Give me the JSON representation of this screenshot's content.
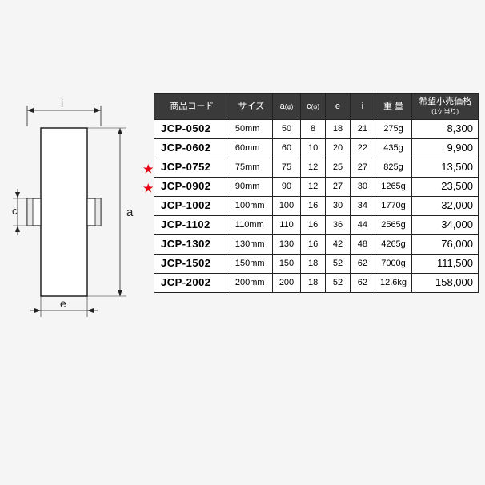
{
  "diagram": {
    "labels": {
      "i": "i",
      "a": "a",
      "c": "c",
      "e": "e"
    }
  },
  "table": {
    "headers": {
      "code": "商品コード",
      "size": "サイズ",
      "a": "a",
      "a_sub": "(φ)",
      "c": "c",
      "c_sub": "(φ)",
      "e": "e",
      "i": "i",
      "weight": "重 量",
      "price": "希望小売価格",
      "price_sub": "(1ケ当り)"
    },
    "rows": [
      {
        "star": false,
        "code": "JCP-0502",
        "size": "50mm",
        "a": "50",
        "c": "8",
        "e": "18",
        "i": "21",
        "weight": "275g",
        "price": "8,300"
      },
      {
        "star": false,
        "code": "JCP-0602",
        "size": "60mm",
        "a": "60",
        "c": "10",
        "e": "20",
        "i": "22",
        "weight": "435g",
        "price": "9,900"
      },
      {
        "star": true,
        "code": "JCP-0752",
        "size": "75mm",
        "a": "75",
        "c": "12",
        "e": "25",
        "i": "27",
        "weight": "825g",
        "price": "13,500"
      },
      {
        "star": true,
        "code": "JCP-0902",
        "size": "90mm",
        "a": "90",
        "c": "12",
        "e": "27",
        "i": "30",
        "weight": "1265g",
        "price": "23,500"
      },
      {
        "star": false,
        "code": "JCP-1002",
        "size": "100mm",
        "a": "100",
        "c": "16",
        "e": "30",
        "i": "34",
        "weight": "1770g",
        "price": "32,000"
      },
      {
        "star": false,
        "code": "JCP-1102",
        "size": "110mm",
        "a": "110",
        "c": "16",
        "e": "36",
        "i": "44",
        "weight": "2565g",
        "price": "34,000"
      },
      {
        "star": false,
        "code": "JCP-1302",
        "size": "130mm",
        "a": "130",
        "c": "16",
        "e": "42",
        "i": "48",
        "weight": "4265g",
        "price": "76,000"
      },
      {
        "star": false,
        "code": "JCP-1502",
        "size": "150mm",
        "a": "150",
        "c": "18",
        "e": "52",
        "i": "62",
        "weight": "7000g",
        "price": "111,500"
      },
      {
        "star": false,
        "code": "JCP-2002",
        "size": "200mm",
        "a": "200",
        "c": "18",
        "e": "52",
        "i": "62",
        "weight": "12.6kg",
        "price": "158,000"
      }
    ]
  }
}
